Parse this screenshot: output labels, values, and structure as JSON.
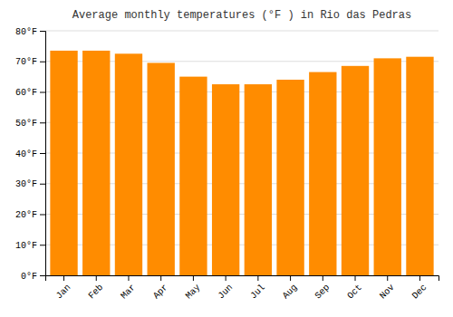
{
  "chart_data": {
    "type": "bar",
    "title": "Average monthly temperatures (°F ) in Rio das Pedras",
    "categories": [
      "Jan",
      "Feb",
      "Mar",
      "Apr",
      "May",
      "Jun",
      "Jul",
      "Aug",
      "Sep",
      "Oct",
      "Nov",
      "Dec"
    ],
    "values": [
      73.5,
      73.5,
      72.5,
      69.5,
      65.0,
      62.5,
      62.5,
      64.0,
      66.5,
      68.5,
      71.0,
      71.5
    ],
    "color": "#FF8C00",
    "ylim": [
      0,
      80
    ],
    "yticks": [
      {
        "value": 0,
        "label": "0°F"
      },
      {
        "value": 10,
        "label": "10°F"
      },
      {
        "value": 20,
        "label": "20°F"
      },
      {
        "value": 30,
        "label": "30°F"
      },
      {
        "value": 40,
        "label": "40°F"
      },
      {
        "value": 50,
        "label": "50°F"
      },
      {
        "value": 60,
        "label": "60°F"
      },
      {
        "value": 70,
        "label": "70°F"
      },
      {
        "value": 80,
        "label": "80°F"
      }
    ],
    "grid": true
  }
}
